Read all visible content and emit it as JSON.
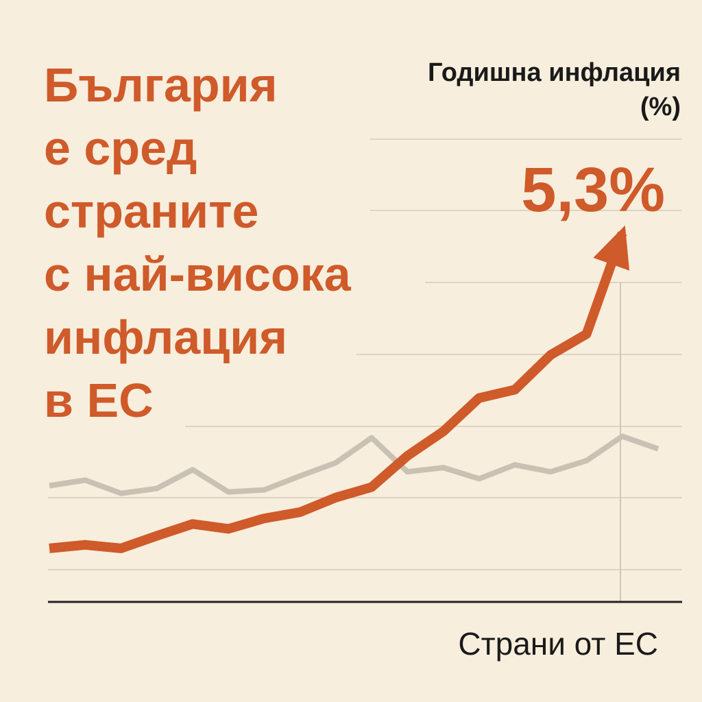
{
  "chart_data": {
    "type": "line",
    "title": [
      "България",
      "е сред",
      "страните",
      "с най-висока",
      "инфлация",
      "в ЕС"
    ],
    "ylabel": [
      "Годишна инфлация",
      "(%)"
    ],
    "xlabel": "Страни от ЕС",
    "annotation": "5,3%",
    "categories": [
      null,
      null,
      null,
      null,
      null,
      null,
      null,
      null,
      null,
      null,
      null,
      null,
      null,
      null,
      null,
      null,
      null,
      null
    ],
    "ylim": [
      0,
      6.7
    ],
    "series": [
      {
        "name": null,
        "color": "#c9c2b4",
        "values": [
          1.67,
          1.75,
          1.56,
          1.63,
          1.9,
          1.58,
          1.61,
          1.81,
          2.0,
          2.36,
          1.87,
          1.93,
          1.77,
          1.97,
          1.87,
          2.03,
          2.38,
          2.2
        ]
      },
      {
        "name": null,
        "color": "#cf5a2a",
        "values": [
          0.77,
          0.82,
          0.77,
          0.95,
          1.12,
          1.05,
          1.2,
          1.29,
          1.5,
          1.65,
          2.1,
          2.45,
          2.93,
          3.05,
          3.55,
          3.85,
          5.3,
          null
        ]
      }
    ]
  }
}
